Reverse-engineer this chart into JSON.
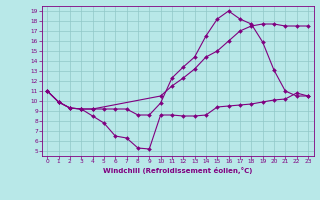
{
  "line1": {
    "x": [
      0,
      1,
      2,
      3,
      4,
      5,
      6,
      7,
      8,
      9,
      10,
      11,
      12,
      13,
      14,
      15,
      16,
      17,
      18,
      19,
      20,
      21,
      22,
      23
    ],
    "y": [
      11,
      9.9,
      9.3,
      9.2,
      8.5,
      7.8,
      6.5,
      6.3,
      5.3,
      5.2,
      8.6,
      8.6,
      8.5,
      8.5,
      8.6,
      9.4,
      9.5,
      9.6,
      9.7,
      9.9,
      10.1,
      10.2,
      10.8,
      10.5
    ]
  },
  "line2": {
    "x": [
      0,
      1,
      2,
      3,
      4,
      5,
      6,
      7,
      8,
      9,
      10,
      11,
      12,
      13,
      14,
      15,
      16,
      17,
      18,
      19,
      20,
      21,
      22,
      23
    ],
    "y": [
      11,
      9.9,
      9.3,
      9.2,
      9.2,
      9.2,
      9.2,
      9.2,
      8.6,
      8.6,
      9.8,
      12.3,
      13.4,
      14.4,
      16.5,
      18.2,
      19.0,
      18.2,
      17.7,
      15.9,
      13.1,
      11.0,
      10.5,
      10.5
    ]
  },
  "line3": {
    "x": [
      0,
      1,
      2,
      3,
      4,
      10,
      11,
      12,
      13,
      14,
      15,
      16,
      17,
      18,
      19,
      20,
      21,
      22,
      23
    ],
    "y": [
      11,
      9.9,
      9.3,
      9.2,
      9.2,
      10.5,
      11.5,
      12.3,
      13.2,
      14.4,
      15.0,
      16.0,
      17.0,
      17.5,
      17.7,
      17.7,
      17.5,
      17.5,
      17.5
    ]
  },
  "color": "#800080",
  "bg_color": "#b8e8e8",
  "grid_color": "#90c8c8",
  "xlim": [
    -0.5,
    23.5
  ],
  "ylim": [
    4.5,
    19.5
  ],
  "xticks": [
    0,
    1,
    2,
    3,
    4,
    5,
    6,
    7,
    8,
    9,
    10,
    11,
    12,
    13,
    14,
    15,
    16,
    17,
    18,
    19,
    20,
    21,
    22,
    23
  ],
  "yticks": [
    5,
    6,
    7,
    8,
    9,
    10,
    11,
    12,
    13,
    14,
    15,
    16,
    17,
    18,
    19
  ],
  "xlabel": "Windchill (Refroidissement éolien,°C)"
}
